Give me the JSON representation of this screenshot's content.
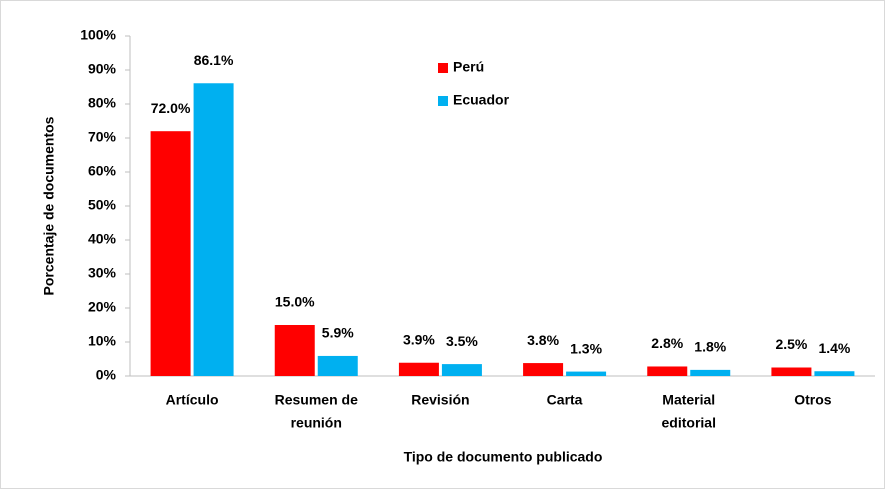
{
  "chart_data": {
    "type": "bar",
    "x_label": "Tipo de documento publicado",
    "y_label": "Porcentaje de documentos",
    "categories": [
      [
        "Artículo"
      ],
      [
        "Resumen de",
        "reunión"
      ],
      [
        "Revisión"
      ],
      [
        "Carta"
      ],
      [
        "Material",
        "editorial"
      ],
      [
        "Otros"
      ]
    ],
    "series": [
      {
        "name": "Perú",
        "color": "#ff0000",
        "values": [
          72.0,
          15.0,
          3.9,
          3.8,
          2.8,
          2.5
        ],
        "value_labels": [
          "72.0%",
          "15.0%",
          "3.9%",
          "3.8%",
          "2.8%",
          "2.5%"
        ]
      },
      {
        "name": "Ecuador",
        "color": "#00b0f0",
        "values": [
          86.1,
          5.9,
          3.5,
          1.3,
          1.8,
          1.4
        ],
        "value_labels": [
          "86.1%",
          "5.9%",
          "3.5%",
          "1.3%",
          "1.8%",
          "1.4%"
        ]
      }
    ],
    "ylim": [
      0,
      100
    ],
    "yticks": [
      {
        "value": 0,
        "label": "0%"
      },
      {
        "value": 10,
        "label": "10%"
      },
      {
        "value": 20,
        "label": "20%"
      },
      {
        "value": 30,
        "label": "30%"
      },
      {
        "value": 40,
        "label": "40%"
      },
      {
        "value": 50,
        "label": "50%"
      },
      {
        "value": 60,
        "label": "60%"
      },
      {
        "value": 70,
        "label": "70%"
      },
      {
        "value": 80,
        "label": "80%"
      },
      {
        "value": 90,
        "label": "90%"
      },
      {
        "value": 100,
        "label": "100%"
      }
    ],
    "grid": false,
    "legend": "top"
  }
}
